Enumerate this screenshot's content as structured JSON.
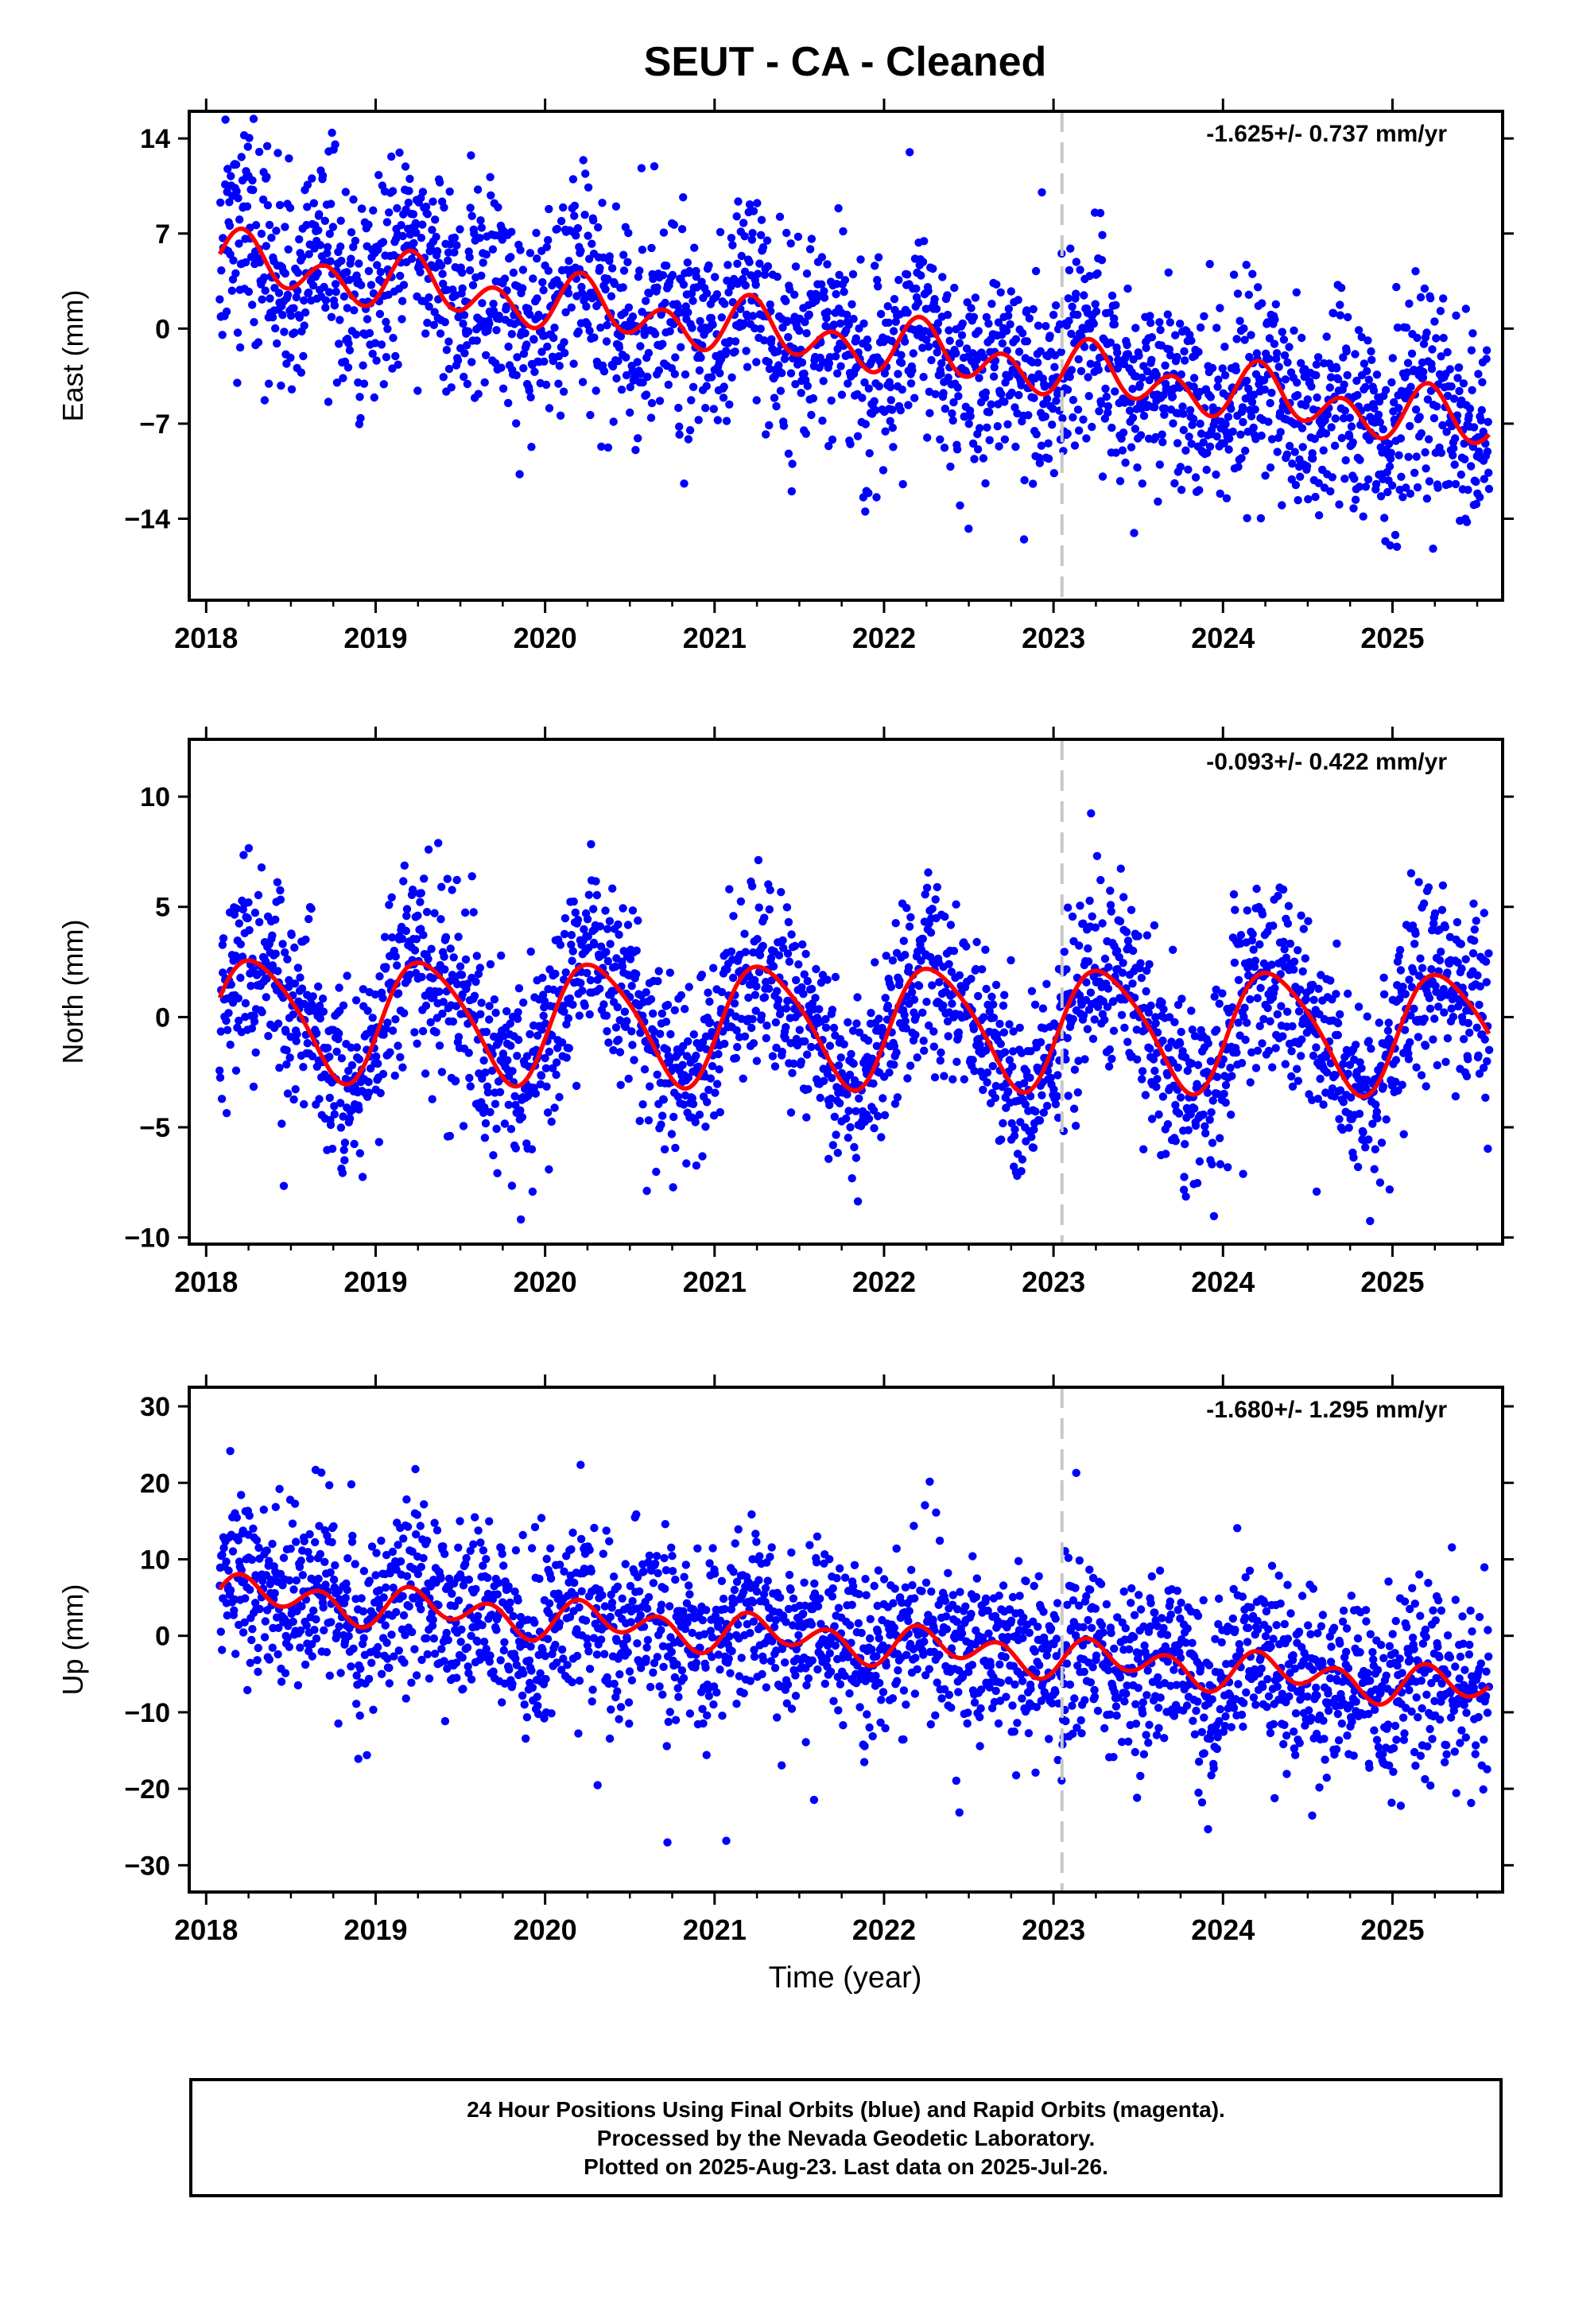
{
  "title": "SEUT  - CA - Cleaned",
  "colors": {
    "data_points": "#0000ff",
    "model_curve": "#ff0000",
    "divider_line": "#c8c8c8",
    "axes": "#000000"
  },
  "x_axis": {
    "label": "Time (year)",
    "range": [
      2017.9,
      2025.65
    ],
    "ticks": [
      "2018",
      "2019",
      "2020",
      "2021",
      "2022",
      "2023",
      "2024",
      "2025"
    ]
  },
  "chart_data": [
    {
      "type": "scatter",
      "panel": "east",
      "ylabel": "East (mm)",
      "ylim": [
        -20,
        16
      ],
      "yticks": [
        14,
        7,
        0,
        -7,
        -14
      ],
      "ytick_labels": [
        "14",
        "7",
        "0",
        "−7",
        "−14"
      ],
      "rate_annotation": "-1.625+/- 0.737 mm/yr",
      "vertical_line_x": 2023.05,
      "trend": {
        "start": 2018.08,
        "end": 2025.57,
        "y_start": 5.0,
        "slope": -1.625
      },
      "seasonal": {
        "annual_amp": 1.0,
        "annual_phase": 0.5,
        "semiannual_amp": 1.6,
        "semiannual_phase": 0.0
      },
      "noise_sd": 3.8,
      "n_points": 2400,
      "seed": 11
    },
    {
      "type": "scatter",
      "panel": "north",
      "ylabel": "North (mm)",
      "ylim": [
        -10.3,
        12.6
      ],
      "yticks": [
        10,
        5,
        0,
        -5,
        -10
      ],
      "ytick_labels": [
        "10",
        "5",
        "0",
        "−5",
        "−10"
      ],
      "rate_annotation": "-0.093+/- 0.422 mm/yr",
      "vertical_line_x": 2023.05,
      "trend": {
        "start": 2018.08,
        "end": 2025.57,
        "y_start": 0.0,
        "slope": -0.093
      },
      "seasonal": {
        "annual_amp": 2.7,
        "annual_phase": 0.2,
        "semiannual_amp": 0.4,
        "semiannual_phase": 1.0
      },
      "noise_sd": 2.1,
      "n_points": 2400,
      "seed": 23
    },
    {
      "type": "scatter",
      "panel": "up",
      "ylabel": "Up (mm)",
      "ylim": [
        -33.5,
        32.5
      ],
      "yticks": [
        30,
        20,
        10,
        0,
        -10,
        -20,
        -30
      ],
      "ytick_labels": [
        "30",
        "20",
        "10",
        "0",
        "−10",
        "−20",
        "−30"
      ],
      "rate_annotation": "-1.680+/- 1.295 mm/yr",
      "vertical_line_x": 2023.05,
      "trend": {
        "start": 2018.08,
        "end": 2025.57,
        "y_start": 5.5,
        "slope": -1.68
      },
      "seasonal": {
        "annual_amp": 1.2,
        "annual_phase": 0.0,
        "semiannual_amp": 2.0,
        "semiannual_phase": 0.3
      },
      "noise_sd": 6.0,
      "n_points": 2400,
      "seed": 37
    }
  ],
  "footer": {
    "line1": "24 Hour Positions Using Final Orbits (blue) and Rapid Orbits (magenta).",
    "line2": "Processed by the Nevada Geodetic Laboratory.",
    "line3": "Plotted on 2025-Aug-23. Last data on 2025-Jul-26."
  }
}
